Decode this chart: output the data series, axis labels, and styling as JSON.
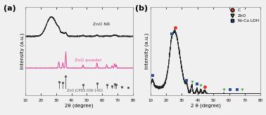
{
  "panel_a": {
    "xlabel": "2θ (degree)",
    "ylabel": "Intensity (a.u.)",
    "xlim": [
      10,
      80
    ],
    "zno_nr_label": "ZnO NR",
    "zno_powder_label": "ZnO powder",
    "jcpds_label": "ZnO JCPDS 036-1451",
    "zno_nr_color": "#222222",
    "zno_powder_color": "#e8479a",
    "jcpds_color": "#555555",
    "jcpds_peaks": [
      31.8,
      34.4,
      36.3,
      47.5,
      56.6,
      62.9,
      66.4,
      68.0,
      69.1,
      72.6,
      77.0
    ],
    "jcpds_heights": [
      0.55,
      0.45,
      1.0,
      0.28,
      0.42,
      0.28,
      0.18,
      0.35,
      0.28,
      0.12,
      0.1
    ]
  },
  "panel_b": {
    "xlabel": "2 θ (degree)",
    "ylabel": "Intensity (a.u.)",
    "xlim": [
      10,
      80
    ],
    "curve_color": "#222222",
    "legend_C": "C",
    "legend_ZnO": "ZnO",
    "legend_NiCoLDH": "Ni-Co LDH",
    "C_color": "#e63329",
    "ZnO_color": "#3aaa35",
    "NiCoLDH_color": "#2c4fa3",
    "C_markers": [
      26.0,
      44.5
    ],
    "ZnO_markers": [
      36.5,
      42.0,
      56.5,
      68.0
    ],
    "NiCoLDH_markers": [
      11.5,
      23.5,
      33.0,
      39.5,
      60.5,
      65.0
    ]
  },
  "bg_color": "#f0f0f0",
  "panel_bg": "#f0f0f0"
}
